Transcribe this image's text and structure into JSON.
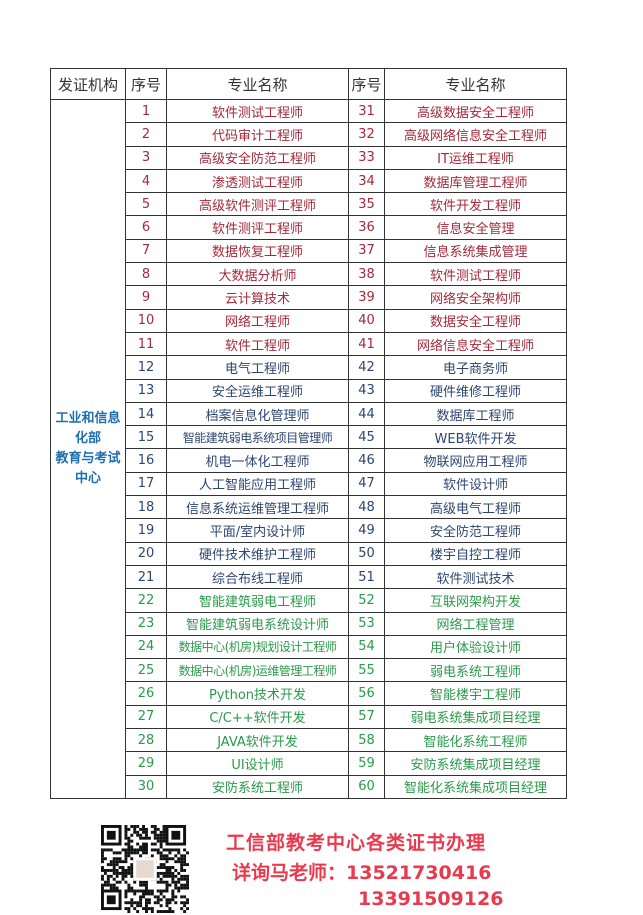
{
  "header": {
    "org": "发证机构",
    "num": "序号",
    "name": "专业名称",
    "num2": "序号",
    "name2": "专业名称"
  },
  "org_label": "工业和信息化部\n教育与考试中心",
  "org_lines": [
    "工业和信息",
    "化部",
    "教育与考试",
    "中心"
  ],
  "colors": {
    "red": "#a3293b",
    "blue": "#2d4670",
    "green": "#2a9a4a",
    "org": "#1f6fb0",
    "promo": "#e83a4e"
  },
  "rows": [
    {
      "n1": "1",
      "m1": "软件测试工程师",
      "n2": "31",
      "m2": "高级数据安全工程师",
      "c": "red"
    },
    {
      "n1": "2",
      "m1": "代码审计工程师",
      "n2": "32",
      "m2": "高级网络信息安全工程师",
      "c": "red"
    },
    {
      "n1": "3",
      "m1": "高级安全防范工程师",
      "n2": "33",
      "m2": "IT运维工程师",
      "c": "red"
    },
    {
      "n1": "4",
      "m1": "渗透测试工程师",
      "n2": "34",
      "m2": "数据库管理工程师",
      "c": "red"
    },
    {
      "n1": "5",
      "m1": "高级软件测评工程师",
      "n2": "35",
      "m2": "软件开发工程师",
      "c": "red"
    },
    {
      "n1": "6",
      "m1": "软件测评工程师",
      "n2": "36",
      "m2": "信息安全管理",
      "c": "red"
    },
    {
      "n1": "7",
      "m1": "数据恢复工程师",
      "n2": "37",
      "m2": "信息系统集成管理",
      "c": "red"
    },
    {
      "n1": "8",
      "m1": "大数据分析师",
      "n2": "38",
      "m2": "软件测试工程师",
      "c": "red"
    },
    {
      "n1": "9",
      "m1": "云计算技术",
      "n2": "39",
      "m2": "网络安全架构师",
      "c": "red"
    },
    {
      "n1": "10",
      "m1": "网络工程师",
      "n2": "40",
      "m2": "数据安全工程师",
      "c": "red"
    },
    {
      "n1": "11",
      "m1": "软件工程师",
      "n2": "41",
      "m2": "网络信息安全工程师",
      "c": "red"
    },
    {
      "n1": "12",
      "m1": "电气工程师",
      "n2": "42",
      "m2": "电子商务师",
      "c": "blue"
    },
    {
      "n1": "13",
      "m1": "安全运维工程师",
      "n2": "43",
      "m2": "硬件维修工程师",
      "c": "blue"
    },
    {
      "n1": "14",
      "m1": "档案信息化管理师",
      "n2": "44",
      "m2": "数据库工程师",
      "c": "blue"
    },
    {
      "n1": "15",
      "m1": "智能建筑弱电系统项目管理师",
      "n2": "45",
      "m2": "WEB软件开发",
      "c": "blue"
    },
    {
      "n1": "16",
      "m1": "机电一体化工程师",
      "n2": "46",
      "m2": "物联网应用工程师",
      "c": "blue"
    },
    {
      "n1": "17",
      "m1": "人工智能应用工程师",
      "n2": "47",
      "m2": "软件设计师",
      "c": "blue"
    },
    {
      "n1": "18",
      "m1": "信息系统运维管理工程师",
      "n2": "48",
      "m2": "高级电气工程师",
      "c": "blue"
    },
    {
      "n1": "19",
      "m1": "平面/室内设计师",
      "n2": "49",
      "m2": "安全防范工程师",
      "c": "blue"
    },
    {
      "n1": "20",
      "m1": "硬件技术维护工程师",
      "n2": "50",
      "m2": "楼宇自控工程师",
      "c": "blue"
    },
    {
      "n1": "21",
      "m1": "综合布线工程师",
      "n2": "51",
      "m2": "软件测试技术",
      "c": "blue"
    },
    {
      "n1": "22",
      "m1": "智能建筑弱电工程师",
      "n2": "52",
      "m2": "互联网架构开发",
      "c": "green"
    },
    {
      "n1": "23",
      "m1": "智能建筑弱电系统设计师",
      "n2": "53",
      "m2": "网络工程管理",
      "c": "green"
    },
    {
      "n1": "24",
      "m1": "数据中心(机房)规划设计工程师",
      "n2": "54",
      "m2": "用户体验设计师",
      "c": "green"
    },
    {
      "n1": "25",
      "m1": "数据中心(机房)运维管理工程师",
      "n2": "55",
      "m2": "弱电系统工程师",
      "c": "green"
    },
    {
      "n1": "26",
      "m1": "Python技术开发",
      "n2": "56",
      "m2": "智能楼宇工程师",
      "c": "green"
    },
    {
      "n1": "27",
      "m1": "C/C++软件开发",
      "n2": "57",
      "m2": "弱电系统集成项目经理",
      "c": "green"
    },
    {
      "n1": "28",
      "m1": "JAVA软件开发",
      "n2": "58",
      "m2": "智能化系统工程师",
      "c": "green"
    },
    {
      "n1": "29",
      "m1": "UI设计师",
      "n2": "59",
      "m2": "安防系统集成项目经理",
      "c": "green"
    },
    {
      "n1": "30",
      "m1": "安防系统工程师",
      "n2": "60",
      "m2": "智能化系统集成项目经理",
      "c": "green"
    }
  ],
  "footer": {
    "line1": "工信部教考中心各类证书办理",
    "line2": "详询马老师：13521730416",
    "line3": "13391509126",
    "qr": "qr-code"
  }
}
